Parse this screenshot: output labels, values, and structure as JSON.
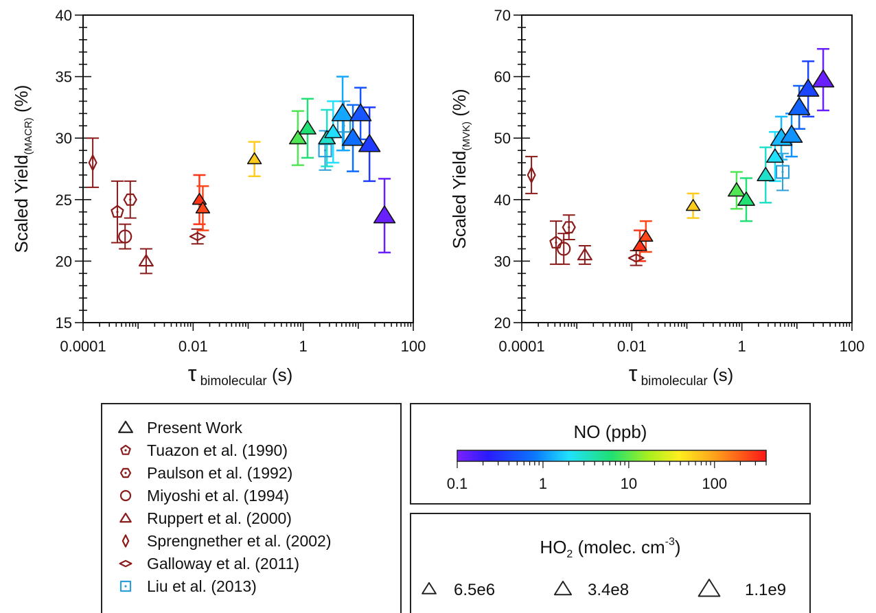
{
  "chart_data": [
    {
      "type": "scatter",
      "ylabel_main": "Scaled Yield",
      "ylabel_sub": "(MACR)",
      "ylabel_tail": " (%)",
      "xlabel_main": "τ",
      "xlabel_sub": " bimolecular",
      "xlabel_tail": " (s)",
      "x_scale": "log",
      "xlim": [
        0.0001,
        100
      ],
      "ylim": [
        15,
        40
      ],
      "x_tick_values": [
        0.0001,
        0.01,
        1,
        100
      ],
      "x_tick_labels": [
        "0.0001",
        "0.01",
        "1",
        "100"
      ],
      "y_tick_values": [
        15,
        20,
        25,
        30,
        35,
        40
      ],
      "y_tick_labels": [
        "15",
        "20",
        "25",
        "30",
        "35",
        "40"
      ],
      "present_work": [
        {
          "x": 0.013,
          "y": 25.0,
          "err": 2.0,
          "no": 300,
          "ho2": 6500000.0
        },
        {
          "x": 0.015,
          "y": 24.3,
          "err": 1.8,
          "no": 250,
          "ho2": 6500000.0
        },
        {
          "x": 0.13,
          "y": 28.3,
          "err": 1.4,
          "no": 60,
          "ho2": 6500000.0
        },
        {
          "x": 0.8,
          "y": 30.0,
          "err": 2.2,
          "no": 9,
          "ho2": 340000000.0
        },
        {
          "x": 1.2,
          "y": 30.8,
          "err": 2.4,
          "no": 6,
          "ho2": 340000000.0
        },
        {
          "x": 2.7,
          "y": 30.0,
          "err": 2.3,
          "no": 3,
          "ho2": 340000000.0
        },
        {
          "x": 3.5,
          "y": 30.5,
          "err": 2.5,
          "no": 2,
          "ho2": 340000000.0
        },
        {
          "x": 5.2,
          "y": 32.0,
          "err": 3.0,
          "no": 1.2,
          "ho2": 1100000000.0
        },
        {
          "x": 8.0,
          "y": 30.0,
          "err": 2.7,
          "no": 0.7,
          "ho2": 1100000000.0
        },
        {
          "x": 11.0,
          "y": 32.0,
          "err": 2.1,
          "no": 0.5,
          "ho2": 1100000000.0
        },
        {
          "x": 16.0,
          "y": 29.5,
          "err": 3.0,
          "no": 0.35,
          "ho2": 1100000000.0
        },
        {
          "x": 30.0,
          "y": 23.7,
          "err": 3.0,
          "no": 0.12,
          "ho2": 1100000000.0
        }
      ],
      "literature": [
        {
          "x": 0.00015,
          "y": 28.0,
          "err": 2.0,
          "study": "Sprengnether et al. (2002)"
        },
        {
          "x": 0.00042,
          "y": 24.0,
          "err": 2.5,
          "study": "Tuazon et al. (1990)"
        },
        {
          "x": 0.00058,
          "y": 22.0,
          "err": 1.0,
          "study": "Miyoshi et al. (1994)"
        },
        {
          "x": 0.00072,
          "y": 25.0,
          "err": 1.5,
          "study": "Paulson et al. (1992)"
        },
        {
          "x": 0.0014,
          "y": 20.0,
          "err": 1.0,
          "study": "Ruppert et al. (2000)"
        },
        {
          "x": 0.012,
          "y": 22.0,
          "err": 0.6,
          "study": "Galloway et al. (2011)"
        },
        {
          "x": 2.5,
          "y": 29.0,
          "err": 1.6,
          "study": "Liu et al. (2013)"
        },
        {
          "x": 5.5,
          "y": 31.0,
          "err": 2.0,
          "study": "Liu et al. (2013)"
        }
      ]
    },
    {
      "type": "scatter",
      "ylabel_main": "Scaled Yield",
      "ylabel_sub": "(MVK)",
      "ylabel_tail": " (%)",
      "xlabel_main": "τ",
      "xlabel_sub": " bimolecular",
      "xlabel_tail": " (s)",
      "x_scale": "log",
      "xlim": [
        0.0001,
        100
      ],
      "ylim": [
        20,
        70
      ],
      "x_tick_values": [
        0.0001,
        0.01,
        1,
        100
      ],
      "x_tick_labels": [
        "0.0001",
        "0.01",
        "1",
        "100"
      ],
      "y_tick_values": [
        20,
        30,
        40,
        50,
        60,
        70
      ],
      "y_tick_labels": [
        "20",
        "30",
        "40",
        "50",
        "60",
        "70"
      ],
      "present_work": [
        {
          "x": 0.014,
          "y": 32.5,
          "err": 2.5,
          "no": 300,
          "ho2": 6500000.0
        },
        {
          "x": 0.018,
          "y": 34.0,
          "err": 2.5,
          "no": 250,
          "ho2": 6500000.0
        },
        {
          "x": 0.13,
          "y": 39.0,
          "err": 2.0,
          "no": 60,
          "ho2": 6500000.0
        },
        {
          "x": 0.8,
          "y": 41.5,
          "err": 3.0,
          "no": 9,
          "ho2": 340000000.0
        },
        {
          "x": 1.2,
          "y": 40.0,
          "err": 3.5,
          "no": 6,
          "ho2": 340000000.0
        },
        {
          "x": 2.7,
          "y": 44.0,
          "err": 4.5,
          "no": 3,
          "ho2": 340000000.0
        },
        {
          "x": 4.0,
          "y": 47.0,
          "err": 4.0,
          "no": 2,
          "ho2": 340000000.0
        },
        {
          "x": 5.2,
          "y": 50.0,
          "err": 3.5,
          "no": 1.4,
          "ho2": 1100000000.0
        },
        {
          "x": 8.0,
          "y": 50.5,
          "err": 3.5,
          "no": 1.0,
          "ho2": 1100000000.0
        },
        {
          "x": 11.0,
          "y": 55.0,
          "err": 3.5,
          "no": 0.6,
          "ho2": 1100000000.0
        },
        {
          "x": 16.0,
          "y": 58.0,
          "err": 4.5,
          "no": 0.4,
          "ho2": 1100000000.0
        },
        {
          "x": 30.0,
          "y": 59.5,
          "err": 5.0,
          "no": 0.12,
          "ho2": 1100000000.0
        }
      ],
      "literature": [
        {
          "x": 0.00015,
          "y": 44.0,
          "err": 3.0,
          "study": "Sprengnether et al. (2002)"
        },
        {
          "x": 0.00042,
          "y": 33.0,
          "err": 3.5,
          "study": "Tuazon et al. (1990)"
        },
        {
          "x": 0.00058,
          "y": 32.0,
          "err": 2.5,
          "study": "Miyoshi et al. (1994)"
        },
        {
          "x": 0.00072,
          "y": 35.5,
          "err": 2.0,
          "study": "Paulson et al. (1992)"
        },
        {
          "x": 0.0014,
          "y": 31.0,
          "err": 1.5,
          "study": "Ruppert et al. (2000)"
        },
        {
          "x": 0.012,
          "y": 30.5,
          "err": 1.2,
          "study": "Galloway et al. (2011)"
        },
        {
          "x": 5.5,
          "y": 44.5,
          "err": 3.0,
          "study": "Liu et al. (2013)"
        }
      ]
    }
  ],
  "legend": {
    "entries": [
      {
        "label": "Present Work",
        "marker": "triangle",
        "color": "#222222"
      },
      {
        "label": "Tuazon et al. (1990)",
        "marker": "pentagon",
        "color": "#8b1a1a"
      },
      {
        "label": "Paulson et al. (1992)",
        "marker": "hexagon",
        "color": "#8b1a1a"
      },
      {
        "label": "Miyoshi et al. (1994)",
        "marker": "circle",
        "color": "#8b1a1a"
      },
      {
        "label": "Ruppert et al. (2000)",
        "marker": "triangle",
        "color": "#8b1a1a"
      },
      {
        "label": "Sprengnether et al. (2002)",
        "marker": "diamond",
        "color": "#8b1a1a"
      },
      {
        "label": "Galloway et al. (2011)",
        "marker": "wide-diamond",
        "color": "#8b1a1a"
      },
      {
        "label": "Liu et al. (2013)",
        "marker": "square",
        "color": "#2a9fd8"
      }
    ]
  },
  "no_colorbar": {
    "title": "NO (ppb)",
    "range": [
      0.1,
      400
    ],
    "scale": "log",
    "tick_values": [
      0.1,
      1,
      10,
      100
    ],
    "tick_labels": [
      "0.1",
      "1",
      "10",
      "100"
    ]
  },
  "ho2_legend": {
    "title_main": "HO",
    "title_sub": "2",
    "title_mid": " (molec. cm",
    "title_sup": "-3",
    "title_end": ")",
    "sizes": [
      {
        "label": "6.5e6",
        "value": 6500000.0
      },
      {
        "label": "3.4e8",
        "value": 340000000.0
      },
      {
        "label": "1.1e9",
        "value": 1100000000.0
      }
    ]
  },
  "colors": {
    "lit_marker": "#8b1a1a",
    "liu_marker": "#2a9fd8",
    "axis": "#111111"
  }
}
